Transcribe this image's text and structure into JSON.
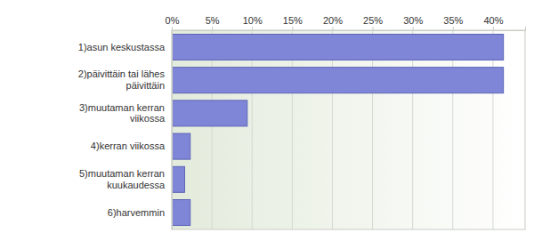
{
  "chart_data": {
    "type": "bar",
    "orientation": "horizontal",
    "categories": [
      "1)asun keskustassa",
      "2)päivittäin tai lähes päivittäin",
      "3)muutaman kerran viikossa",
      "4)kerran viikossa",
      "5)muutaman kerran kuukaudessa",
      "6)harvemmin"
    ],
    "values": [
      41.3,
      41.3,
      9.4,
      2.3,
      1.6,
      2.3
    ],
    "color": "#7f86d8",
    "xlim": [
      0,
      44
    ],
    "xticks": [
      {
        "value": 0,
        "label": "0%"
      },
      {
        "value": 5,
        "label": "5%"
      },
      {
        "value": 10,
        "label": "10%"
      },
      {
        "value": 15,
        "label": "15%"
      },
      {
        "value": 20,
        "label": "20%"
      },
      {
        "value": 25,
        "label": "25%"
      },
      {
        "value": 30,
        "label": "30%"
      },
      {
        "value": 35,
        "label": "35%"
      },
      {
        "value": 40,
        "label": "40%"
      }
    ],
    "grid": true
  }
}
